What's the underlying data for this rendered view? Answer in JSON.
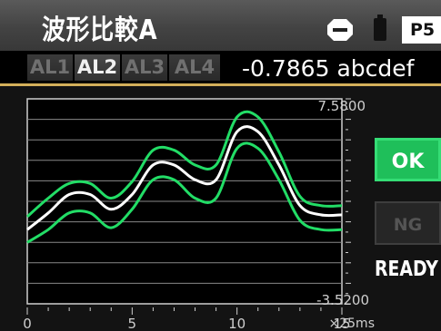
{
  "header": {
    "title": "波形比較A",
    "page_label": "P5",
    "icons": [
      "stop-icon",
      "battery-icon"
    ]
  },
  "tabs": [
    {
      "label": "AL1",
      "active": false
    },
    {
      "label": "AL2",
      "active": true
    },
    {
      "label": "AL3",
      "active": false
    },
    {
      "label": "AL4",
      "active": false
    }
  ],
  "readout": {
    "value": "-0.7865 abcdef"
  },
  "chart_data": {
    "type": "line",
    "ymax_label": "7.5800",
    "ymin_label": "-3.5200",
    "x_ticks": [
      "0",
      "5",
      "10",
      "15"
    ],
    "x_unit": "×25ms",
    "xlim": [
      0,
      15
    ],
    "grid": true,
    "colors": {
      "signal": "#ffffff",
      "limits": "#22dd66",
      "grid": "#888888"
    },
    "series": [
      {
        "role": "upper",
        "x": [
          0,
          1,
          2,
          3,
          4,
          5,
          6,
          7,
          8,
          9,
          10,
          11,
          12,
          13,
          14,
          15
        ],
        "y": [
          1.2,
          2.2,
          3.0,
          3.0,
          2.2,
          3.1,
          4.8,
          4.8,
          4.0,
          4.0,
          6.6,
          6.6,
          4.7,
          2.3,
          1.8,
          1.8
        ]
      },
      {
        "role": "signal",
        "x": [
          0,
          1,
          2,
          3,
          4,
          5,
          6,
          7,
          8,
          9,
          10,
          11,
          12,
          13,
          14,
          15
        ],
        "y": [
          0.5,
          1.4,
          2.4,
          2.4,
          1.6,
          2.4,
          4.0,
          4.0,
          3.2,
          3.2,
          5.8,
          5.8,
          4.0,
          1.8,
          1.3,
          1.3
        ]
      },
      {
        "role": "lower",
        "x": [
          0,
          1,
          2,
          3,
          4,
          5,
          6,
          7,
          8,
          9,
          10,
          11,
          12,
          13,
          14,
          15
        ],
        "y": [
          -0.2,
          0.5,
          1.4,
          1.4,
          0.6,
          1.6,
          3.2,
          3.2,
          2.2,
          2.2,
          4.9,
          4.9,
          3.2,
          1.0,
          0.5,
          0.5
        ]
      }
    ]
  },
  "buttons": {
    "ok": "OK",
    "ng": "NG"
  },
  "status": "READY"
}
